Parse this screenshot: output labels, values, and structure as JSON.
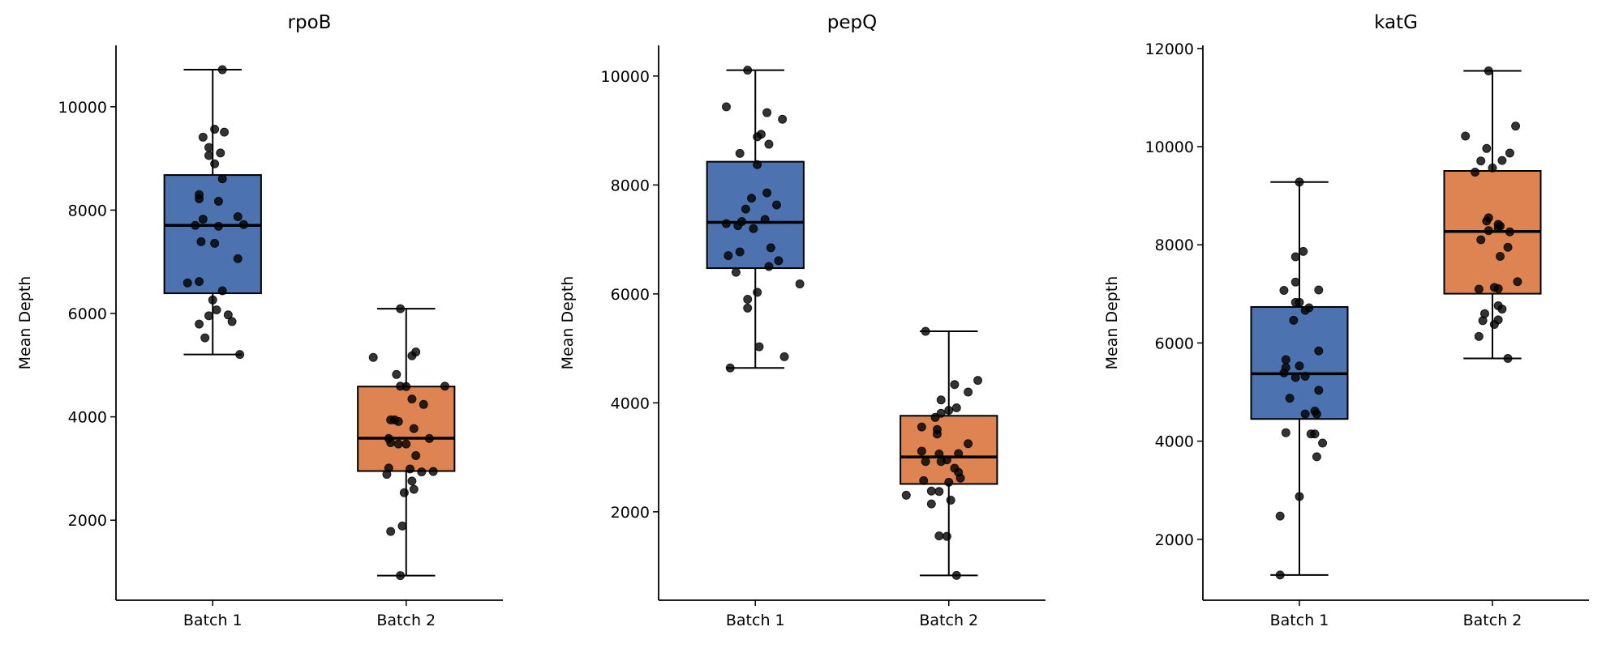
{
  "chart_data": [
    {
      "type": "box",
      "title": "rpoB",
      "ylabel": "Mean Depth",
      "xlabel": "",
      "categories": [
        "Batch 1",
        "Batch 2"
      ],
      "ylim": [
        452,
        11188
      ],
      "yticks": [
        2000,
        4000,
        6000,
        8000,
        10000
      ],
      "colors": [
        "#4c72b0",
        "#dd8452"
      ],
      "boxes": [
        {
          "whisker_low": 5207,
          "q1": 6391,
          "median": 7704,
          "q3": 8679,
          "whisker_high": 10717
        },
        {
          "whisker_low": 929,
          "q1": 2951,
          "median": 3587,
          "q3": 4586,
          "whisker_high": 6093
        }
      ],
      "points": [
        {
          "values": [
            10717,
            9412,
            9565,
            9509,
            9211,
            9057,
            9106,
            8896,
            8606,
            8300,
            8220,
            8171,
            7825,
            7873,
            7704,
            7688,
            7720,
            7390,
            7358,
            7060,
            6592,
            6617,
            6439,
            6262,
            6069,
            5956,
            5972,
            5795,
            5843,
            5529,
            5207
          ],
          "jitter": [
            0.05,
            -0.05,
            0.01,
            0.06,
            -0.02,
            -0.02,
            0.04,
            0.01,
            0.05,
            -0.07,
            -0.07,
            0.03,
            -0.05,
            0.13,
            -0.09,
            0.03,
            0.16,
            -0.06,
            0.01,
            0.13,
            -0.13,
            -0.07,
            0.05,
            0,
            0.02,
            -0.02,
            0.08,
            -0.07,
            0.1,
            -0.04,
            0.14
          ]
        },
        {
          "values": [
            6093,
            5150,
            5182,
            5255,
            4820,
            4594,
            4586,
            4594,
            4345,
            4240,
            3942,
            3942,
            3910,
            3773,
            3580,
            3580,
            3500,
            3475,
            3475,
            3249,
            3008,
            2992,
            2887,
            2935,
            2943,
            2758,
            2532,
            2597,
            1888,
            1783,
            929
          ],
          "jitter": [
            -0.03,
            -0.17,
            0.03,
            0.05,
            -0.05,
            -0.03,
            0,
            0.2,
            0.03,
            0.09,
            -0.08,
            -0.06,
            -0.04,
            0.04,
            -0.09,
            0.12,
            -0.08,
            -0.04,
            0,
            0.05,
            -0.09,
            0.02,
            -0.1,
            0.08,
            0.14,
            0.03,
            -0.01,
            0.04,
            -0.02,
            -0.08,
            -0.03
          ]
        }
      ]
    },
    {
      "type": "box",
      "title": "pepQ",
      "ylabel": "Mean Depth",
      "xlabel": "",
      "categories": [
        "Batch 1",
        "Batch 2"
      ],
      "ylim": [
        377,
        10563
      ],
      "yticks": [
        2000,
        4000,
        6000,
        8000,
        10000
      ],
      "colors": [
        "#4c72b0",
        "#dd8452"
      ],
      "boxes": [
        {
          "whisker_low": 4641,
          "q1": 6473,
          "median": 7313,
          "q3": 8427,
          "whisker_high": 10107
        },
        {
          "whisker_low": 832,
          "q1": 2511,
          "median": 3007,
          "q3": 3763,
          "whisker_high": 5313
        }
      ],
      "points": [
        {
          "values": [
            10107,
            9435,
            9328,
            9206,
            8885,
            8931,
            8748,
            8580,
            8374,
            7855,
            7756,
            7633,
            7557,
            7366,
            7290,
            7252,
            7328,
            7198,
            6847,
            6771,
            6702,
            6610,
            6504,
            6397,
            6183,
            6030,
            5901,
            5740,
            5030,
            4847,
            4641
          ],
          "jitter": [
            -0.04,
            -0.15,
            0.06,
            0.14,
            0.01,
            0.03,
            0.07,
            -0.08,
            0.01,
            0.06,
            -0.02,
            0.11,
            -0.05,
            0.05,
            -0.15,
            -0.09,
            -0.07,
            -0.01,
            0.08,
            -0.08,
            -0.14,
            0.12,
            0.07,
            -0.1,
            0.23,
            0.01,
            -0.04,
            -0.04,
            0.02,
            0.15,
            -0.13
          ]
        },
        {
          "values": [
            5313,
            4412,
            4336,
            4198,
            4053,
            3908,
            3862,
            3809,
            3733,
            3557,
            3511,
            3427,
            3251,
            3114,
            3061,
            3068,
            2923,
            2923,
            2954,
            2801,
            2725,
            2618,
            2572,
            2542,
            2381,
            2374,
            2305,
            2213,
            2145,
            1557,
            1549,
            832
          ],
          "jitter": [
            -0.12,
            0.15,
            0.03,
            0.1,
            -0.04,
            0.04,
            0,
            -0.04,
            -0.07,
            -0.14,
            -0.06,
            -0.06,
            0.1,
            -0.14,
            -0.05,
            0.05,
            -0.12,
            -0.04,
            -0.01,
            0.03,
            0.05,
            0.06,
            -0.13,
            0,
            -0.09,
            -0.05,
            -0.22,
            0.01,
            -0.09,
            -0.05,
            -0.01,
            0.04
          ]
        }
      ]
    },
    {
      "type": "box",
      "title": "katG",
      "ylabel": "Mean Depth",
      "xlabel": "",
      "categories": [
        "Batch 1",
        "Batch 2"
      ],
      "ylim": [
        759,
        12064
      ],
      "yticks": [
        2000,
        4000,
        6000,
        8000,
        10000,
        12000
      ],
      "colors": [
        "#4c72b0",
        "#dd8452"
      ],
      "boxes": [
        {
          "whisker_low": 1273,
          "q1": 4452,
          "median": 5373,
          "q3": 6734,
          "whisker_high": 9278
        },
        {
          "whisker_low": 5686,
          "q1": 7004,
          "median": 8272,
          "q3": 9506,
          "whisker_high": 11544
        }
      ],
      "points": [
        {
          "values": [
            9278,
            7866,
            7757,
            7241,
            7072,
            7080,
            6827,
            6827,
            6717,
            6666,
            6463,
            5838,
            5660,
            5533,
            5500,
            5390,
            5297,
            5322,
            5035,
            4874,
            4612,
            4553,
            4553,
            4172,
            4147,
            4147,
            3961,
            3682,
            2871,
            2473,
            1273
          ],
          "jitter": [
            0,
            0.02,
            -0.02,
            -0.02,
            -0.08,
            0.1,
            -0.02,
            0,
            0.05,
            0.03,
            -0.03,
            0.1,
            -0.07,
            0,
            -0.07,
            -0.08,
            -0.02,
            0.03,
            0.1,
            -0.05,
            0.08,
            0.03,
            0.09,
            -0.07,
            0.06,
            0.08,
            0.12,
            0.09,
            0,
            -0.1,
            -0.1
          ]
        },
        {
          "values": [
            11544,
            10419,
            10216,
            9963,
            9870,
            9709,
            9718,
            9566,
            9481,
            8551,
            8484,
            8416,
            8382,
            8289,
            8340,
            8264,
            8103,
            7951,
            7765,
            7249,
            7097,
            7131,
            7106,
            6759,
            6691,
            6598,
            6455,
            6472,
            6379,
            6134,
            5686
          ],
          "jitter": [
            -0.02,
            0.12,
            -0.14,
            -0.03,
            0.09,
            -0.06,
            0.05,
            0,
            -0.09,
            -0.02,
            -0.03,
            0.03,
            0.04,
            -0.02,
            0.03,
            0.09,
            -0.06,
            0.08,
            0.04,
            0.13,
            -0.07,
            0.01,
            0.03,
            0.03,
            0.05,
            -0.04,
            -0.05,
            0.03,
            0.01,
            -0.07,
            0.08
          ]
        }
      ]
    }
  ]
}
